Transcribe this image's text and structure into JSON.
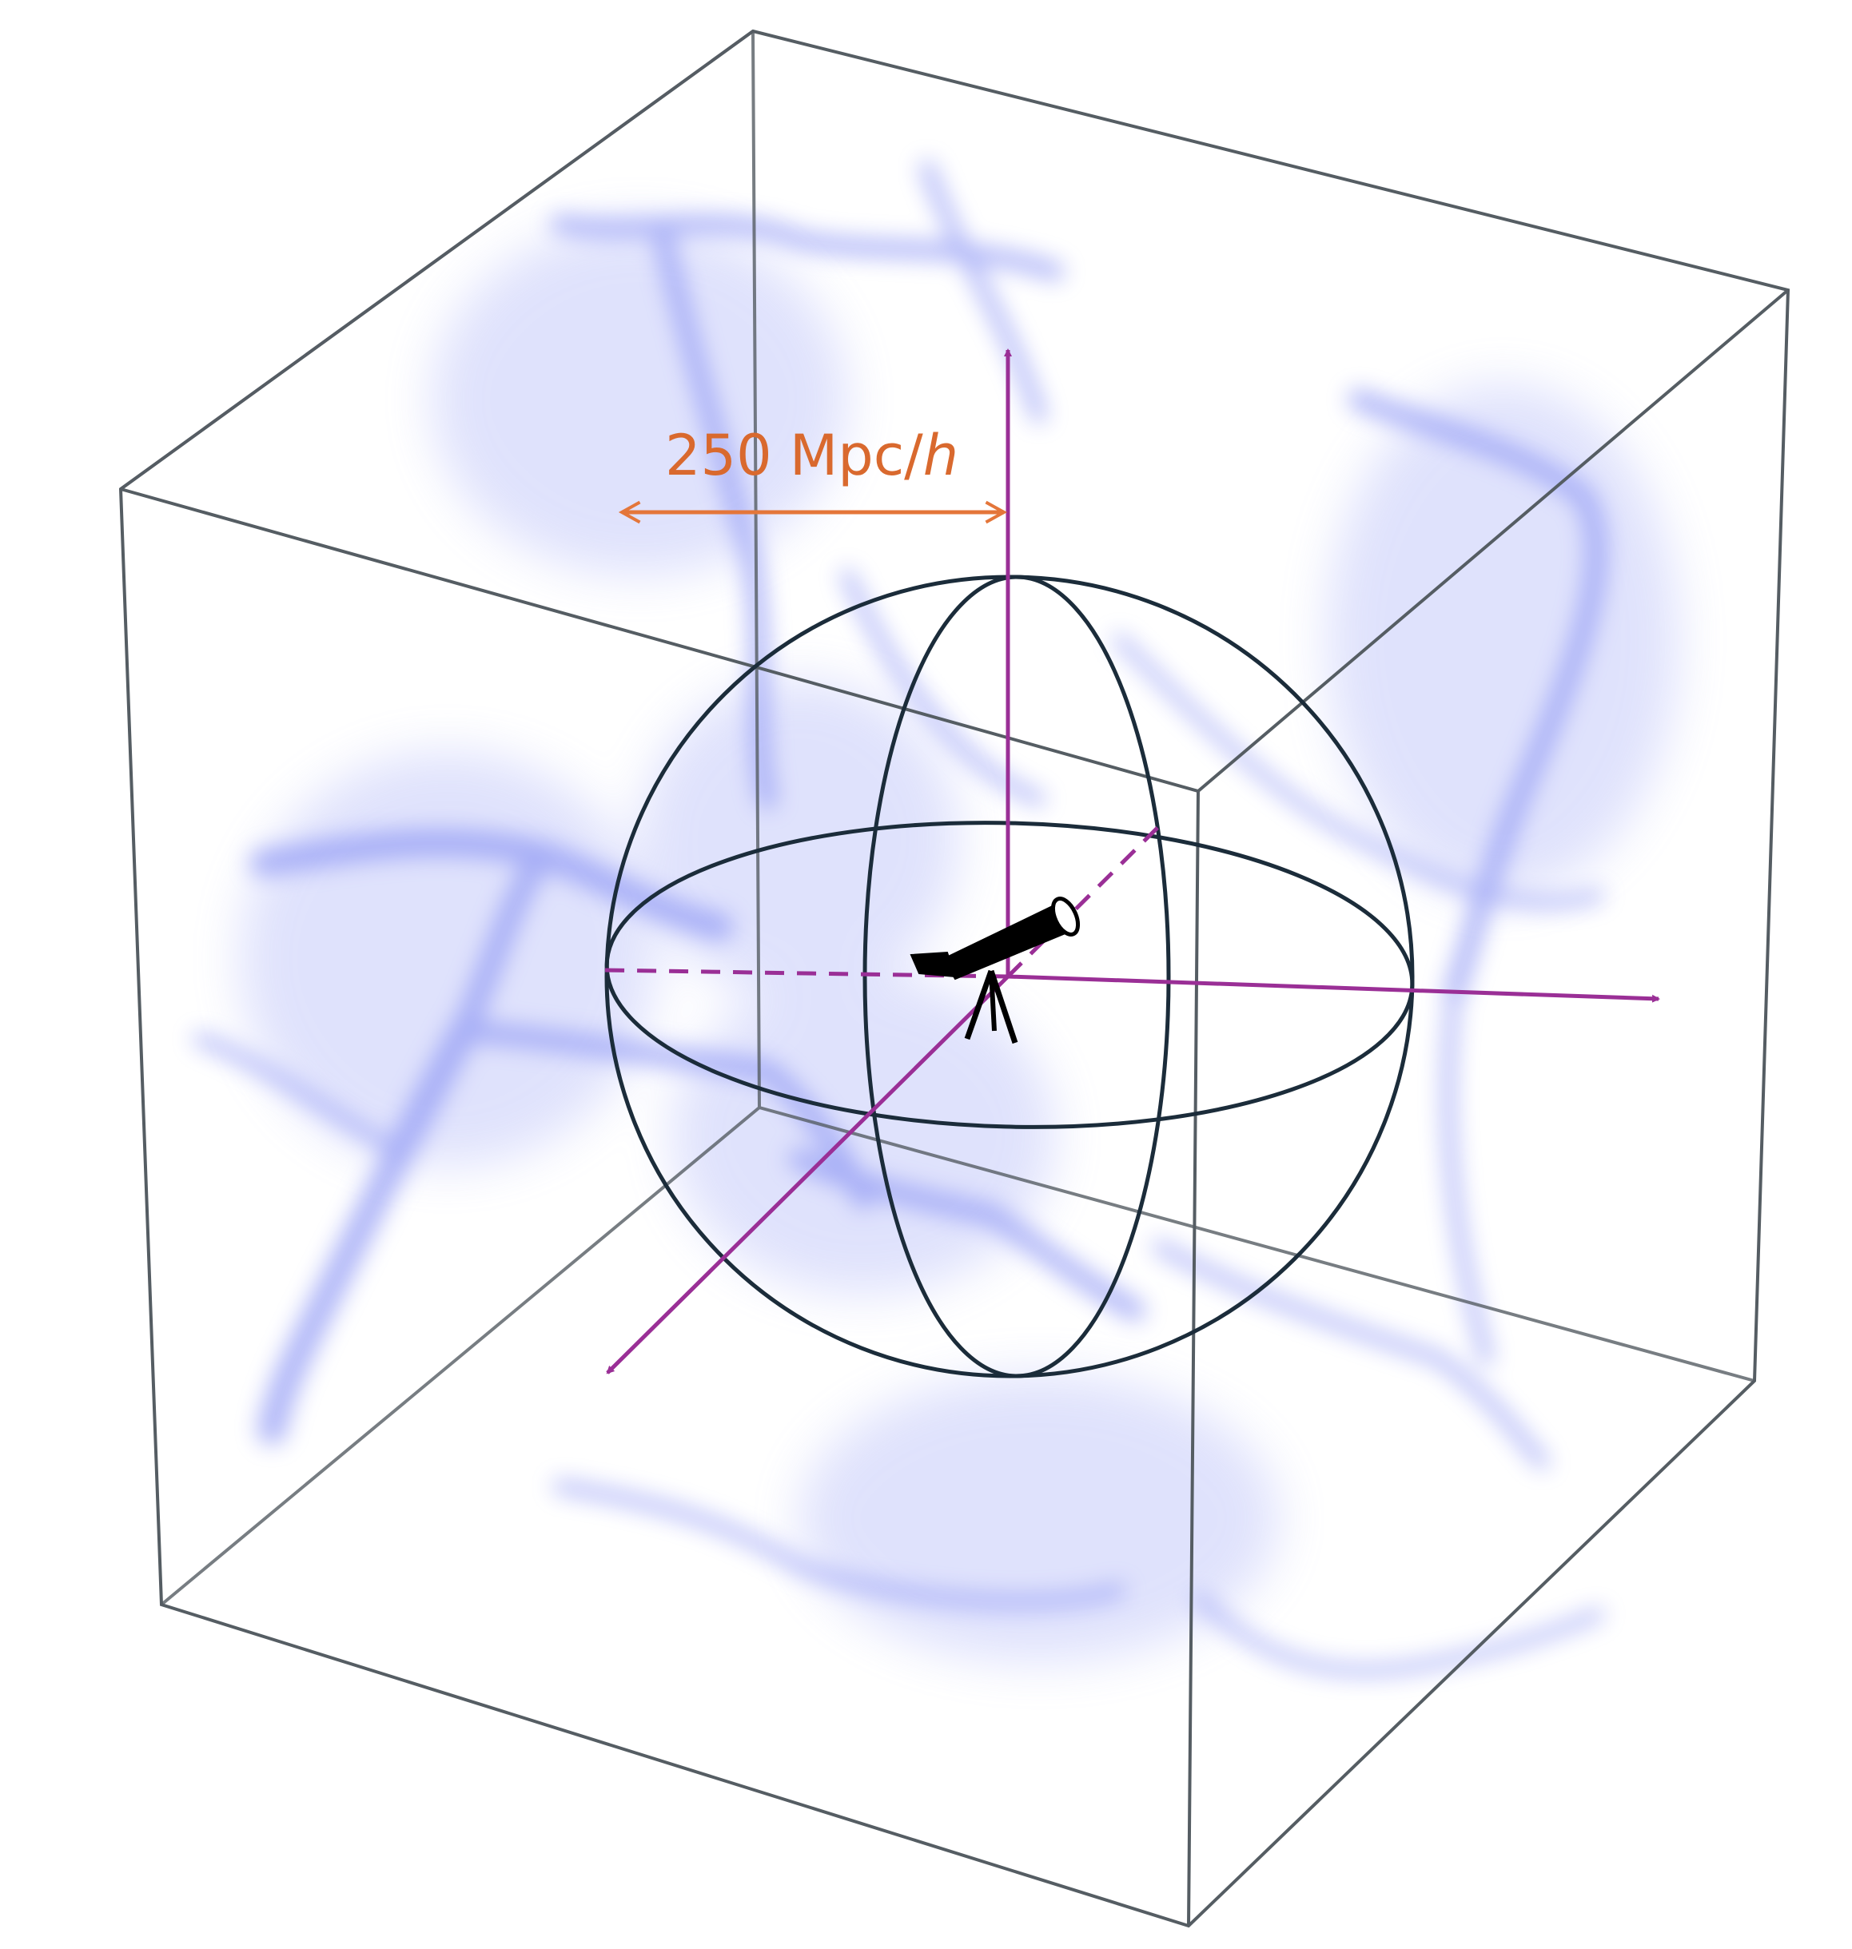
{
  "scale_label": {
    "text": "250 Mpc/",
    "italic": "h"
  }
}
